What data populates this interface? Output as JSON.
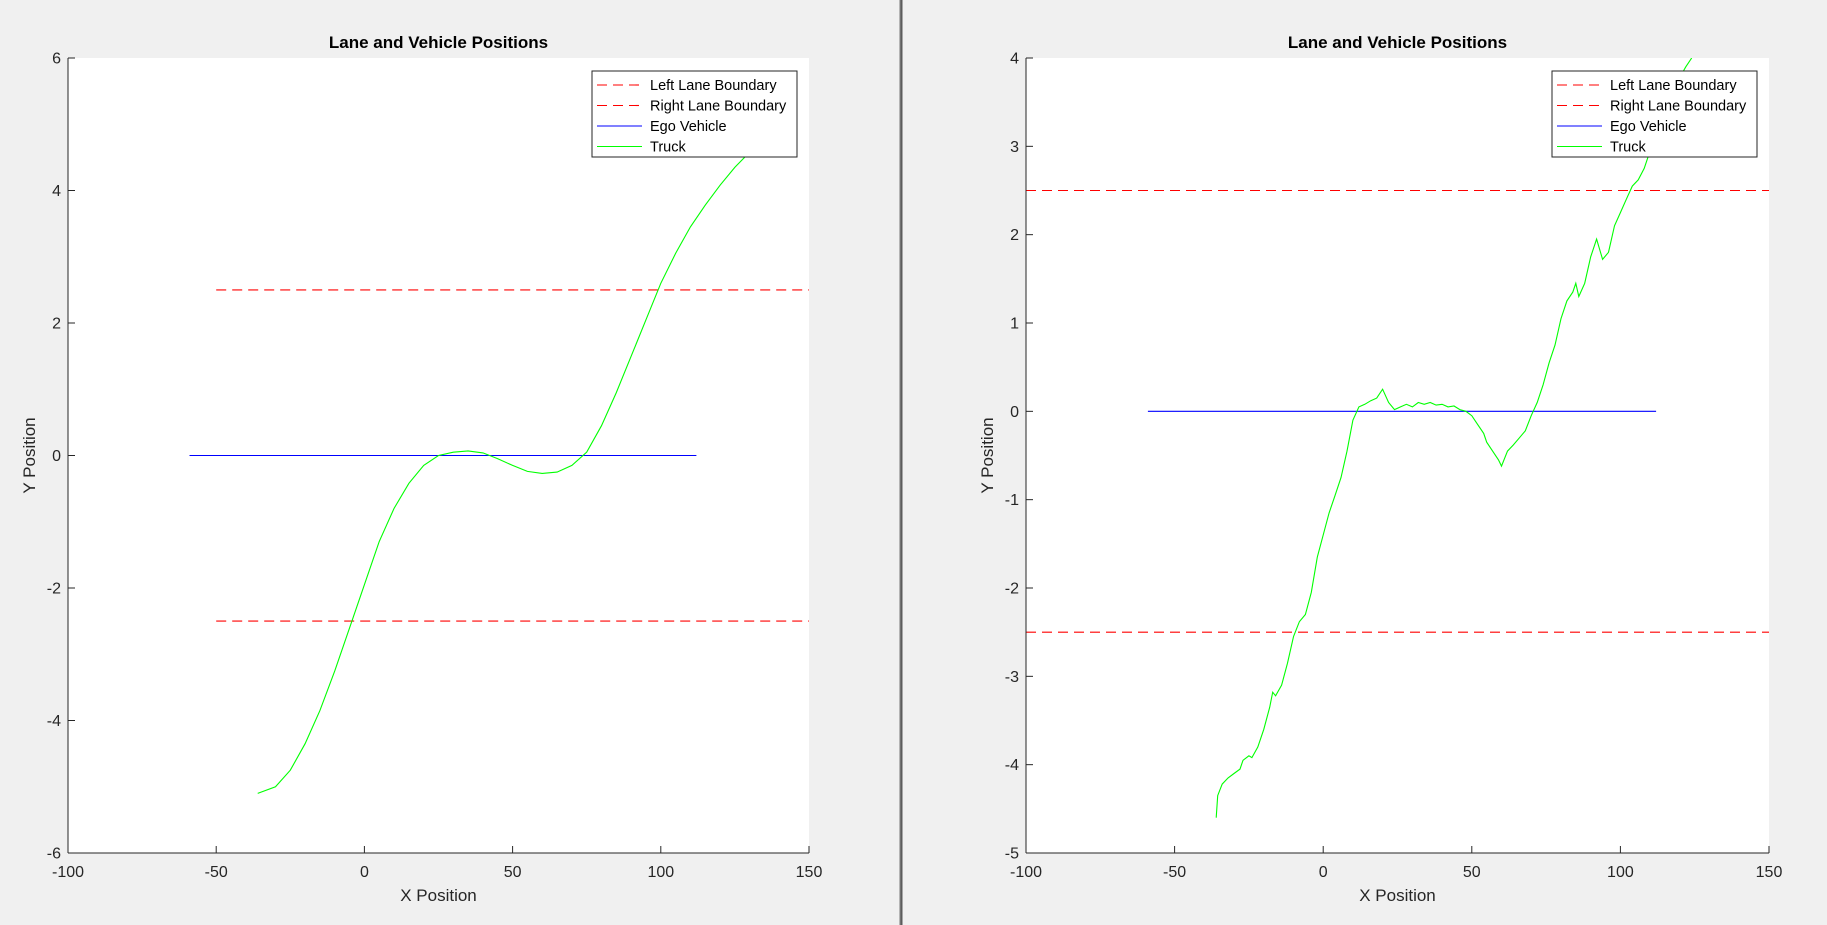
{
  "colors": {
    "lane_boundary": "#ff0000",
    "ego_vehicle": "#0000ff",
    "truck": "#00ff00",
    "axes_background": "#ffffff",
    "figure_background": "#f0f0f0"
  },
  "chart_data": [
    {
      "type": "line",
      "title": "Lane and Vehicle Positions",
      "xlabel": "X Position",
      "ylabel": "Y Position",
      "xlim": [
        -100,
        150
      ],
      "ylim": [
        -6,
        6
      ],
      "xticks": [
        "-100",
        "-50",
        "0",
        "50",
        "100",
        "150"
      ],
      "yticks": [
        "-6",
        "-4",
        "-2",
        "0",
        "2",
        "4",
        "6"
      ],
      "grid": false,
      "legend_position": "top-right",
      "series": [
        {
          "name": "Left Lane Boundary",
          "style": "dashed",
          "color": "#ff0000",
          "points": [
            [
              -50,
              2.5
            ],
            [
              150,
              2.5
            ]
          ]
        },
        {
          "name": "Right Lane Boundary",
          "style": "dashed",
          "color": "#ff0000",
          "points": [
            [
              -50,
              -2.5
            ],
            [
              150,
              -2.5
            ]
          ]
        },
        {
          "name": "Ego Vehicle",
          "style": "solid",
          "color": "#0000ff",
          "points": [
            [
              -59,
              0
            ],
            [
              112,
              0
            ]
          ]
        },
        {
          "name": "Truck",
          "style": "solid",
          "color": "#00ff00",
          "points": [
            [
              -36,
              -5.1
            ],
            [
              -30,
              -5.0
            ],
            [
              -25,
              -4.75
            ],
            [
              -20,
              -4.35
            ],
            [
              -15,
              -3.85
            ],
            [
              -10,
              -3.25
            ],
            [
              -5,
              -2.6
            ],
            [
              0,
              -1.95
            ],
            [
              5,
              -1.3
            ],
            [
              10,
              -0.8
            ],
            [
              15,
              -0.42
            ],
            [
              20,
              -0.15
            ],
            [
              25,
              0.0
            ],
            [
              30,
              0.05
            ],
            [
              35,
              0.07
            ],
            [
              40,
              0.04
            ],
            [
              45,
              -0.05
            ],
            [
              50,
              -0.15
            ],
            [
              55,
              -0.24
            ],
            [
              60,
              -0.27
            ],
            [
              65,
              -0.25
            ],
            [
              70,
              -0.15
            ],
            [
              75,
              0.05
            ],
            [
              80,
              0.45
            ],
            [
              85,
              0.95
            ],
            [
              90,
              1.5
            ],
            [
              95,
              2.05
            ],
            [
              100,
              2.6
            ],
            [
              105,
              3.05
            ],
            [
              110,
              3.45
            ],
            [
              115,
              3.78
            ],
            [
              120,
              4.08
            ],
            [
              125,
              4.35
            ],
            [
              130,
              4.58
            ],
            [
              135,
              4.8
            ],
            [
              140,
              5.0
            ]
          ]
        }
      ]
    },
    {
      "type": "line",
      "title": "Lane and Vehicle Positions",
      "xlabel": "X Position",
      "ylabel": "Y Position",
      "xlim": [
        -100,
        150
      ],
      "ylim": [
        -5,
        4
      ],
      "xticks": [
        "-100",
        "-50",
        "0",
        "50",
        "100",
        "150"
      ],
      "yticks": [
        "-5",
        "-4",
        "-3",
        "-2",
        "-1",
        "0",
        "1",
        "2",
        "3",
        "4"
      ],
      "grid": false,
      "legend_position": "top-right",
      "series": [
        {
          "name": "Left Lane Boundary",
          "style": "dashed",
          "color": "#ff0000",
          "points": [
            [
              -100,
              2.5
            ],
            [
              150,
              2.5
            ]
          ]
        },
        {
          "name": "Right Lane Boundary",
          "style": "dashed",
          "color": "#ff0000",
          "points": [
            [
              -100,
              -2.5
            ],
            [
              150,
              -2.5
            ]
          ]
        },
        {
          "name": "Ego Vehicle",
          "style": "solid",
          "color": "#0000ff",
          "points": [
            [
              -59,
              0
            ],
            [
              112,
              0
            ]
          ]
        },
        {
          "name": "Truck",
          "style": "solid",
          "color": "#00ff00",
          "points": [
            [
              -36,
              -4.6
            ],
            [
              -35.5,
              -4.35
            ],
            [
              -34,
              -4.22
            ],
            [
              -32,
              -4.15
            ],
            [
              -30,
              -4.1
            ],
            [
              -28,
              -4.05
            ],
            [
              -27,
              -3.95
            ],
            [
              -25,
              -3.9
            ],
            [
              -24,
              -3.92
            ],
            [
              -22,
              -3.8
            ],
            [
              -20,
              -3.6
            ],
            [
              -18,
              -3.35
            ],
            [
              -17,
              -3.18
            ],
            [
              -16,
              -3.22
            ],
            [
              -14,
              -3.1
            ],
            [
              -12,
              -2.85
            ],
            [
              -10,
              -2.55
            ],
            [
              -8,
              -2.38
            ],
            [
              -6,
              -2.3
            ],
            [
              -4,
              -2.05
            ],
            [
              -2,
              -1.65
            ],
            [
              0,
              -1.4
            ],
            [
              2,
              -1.15
            ],
            [
              4,
              -0.95
            ],
            [
              6,
              -0.75
            ],
            [
              8,
              -0.45
            ],
            [
              10,
              -0.1
            ],
            [
              12,
              0.05
            ],
            [
              14,
              0.08
            ],
            [
              16,
              0.12
            ],
            [
              18,
              0.15
            ],
            [
              20,
              0.25
            ],
            [
              22,
              0.1
            ],
            [
              24,
              0.02
            ],
            [
              26,
              0.05
            ],
            [
              28,
              0.08
            ],
            [
              30,
              0.05
            ],
            [
              32,
              0.1
            ],
            [
              34,
              0.08
            ],
            [
              36,
              0.1
            ],
            [
              38,
              0.07
            ],
            [
              40,
              0.08
            ],
            [
              42,
              0.05
            ],
            [
              44,
              0.06
            ],
            [
              46,
              0.02
            ],
            [
              48,
              0.0
            ],
            [
              50,
              -0.05
            ],
            [
              52,
              -0.15
            ],
            [
              54,
              -0.25
            ],
            [
              55,
              -0.35
            ],
            [
              57,
              -0.45
            ],
            [
              59,
              -0.55
            ],
            [
              60,
              -0.62
            ],
            [
              62,
              -0.45
            ],
            [
              64,
              -0.38
            ],
            [
              66,
              -0.3
            ],
            [
              68,
              -0.22
            ],
            [
              70,
              -0.05
            ],
            [
              72,
              0.1
            ],
            [
              74,
              0.3
            ],
            [
              76,
              0.55
            ],
            [
              78,
              0.75
            ],
            [
              80,
              1.05
            ],
            [
              82,
              1.25
            ],
            [
              84,
              1.35
            ],
            [
              85,
              1.45
            ],
            [
              86,
              1.3
            ],
            [
              88,
              1.45
            ],
            [
              90,
              1.75
            ],
            [
              92,
              1.95
            ],
            [
              94,
              1.72
            ],
            [
              96,
              1.8
            ],
            [
              98,
              2.1
            ],
            [
              100,
              2.25
            ],
            [
              102,
              2.4
            ],
            [
              104,
              2.55
            ],
            [
              106,
              2.62
            ],
            [
              108,
              2.75
            ],
            [
              110,
              2.95
            ],
            [
              112,
              3.15
            ],
            [
              114,
              3.35
            ],
            [
              116,
              3.5
            ],
            [
              118,
              3.65
            ],
            [
              120,
              3.78
            ],
            [
              122,
              3.9
            ],
            [
              124,
              4.0
            ]
          ]
        }
      ]
    }
  ]
}
